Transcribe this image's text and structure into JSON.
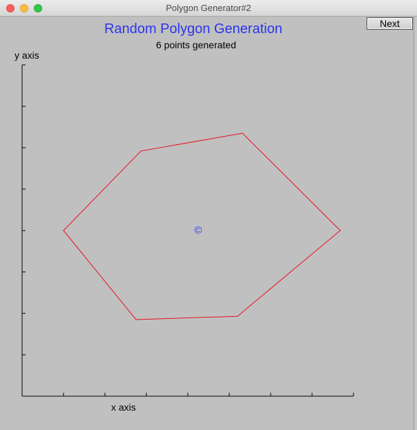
{
  "window": {
    "title": "Polygon Generator#2"
  },
  "toolbar": {
    "next_label": "Next"
  },
  "colors": {
    "title": "#2b35f0",
    "polygon": "#e8101e",
    "centroid": "#2b35f0",
    "axis": "#000000"
  },
  "chart_data": {
    "type": "line",
    "title": "Random Polygon Generation",
    "subtitle": "6 points generated",
    "xlabel": "x axis",
    "ylabel": "y axis",
    "xlim": [
      0,
      8
    ],
    "ylim": [
      0,
      8
    ],
    "x_ticks": [
      0,
      1,
      2,
      3,
      4,
      5,
      6,
      7,
      8
    ],
    "y_ticks": [
      0,
      1,
      2,
      3,
      4,
      5,
      6,
      7,
      8
    ],
    "polygon": [
      {
        "x": 1.0,
        "y": 4.0
      },
      {
        "x": 2.87,
        "y": 5.92
      },
      {
        "x": 5.32,
        "y": 6.35
      },
      {
        "x": 7.68,
        "y": 4.0
      },
      {
        "x": 5.2,
        "y": 1.93
      },
      {
        "x": 2.75,
        "y": 1.85
      }
    ],
    "centroid": {
      "x": 4.25,
      "y": 4.0,
      "symbol": "©"
    }
  }
}
